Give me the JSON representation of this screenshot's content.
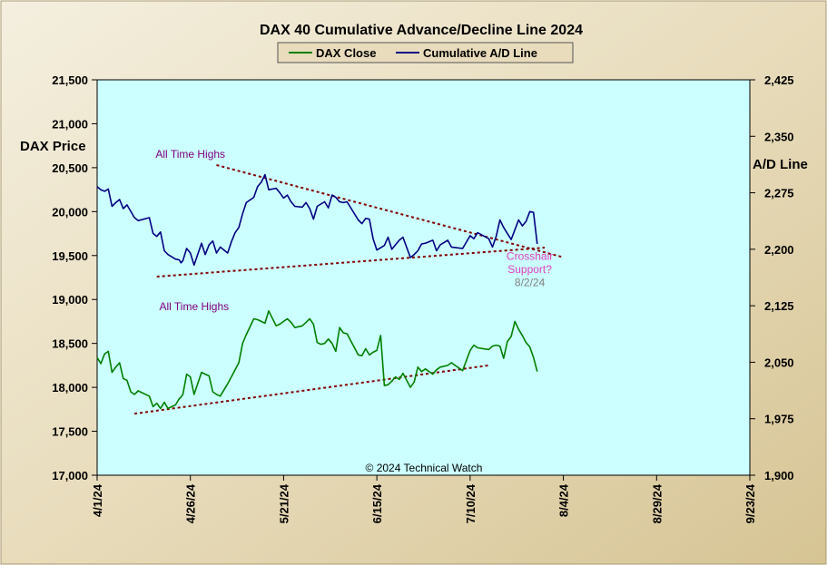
{
  "chart_data": {
    "type": "line",
    "title": "DAX 40 Cumulative Advance/Decline Line 2024",
    "ylabel_left": "DAX Price",
    "ylabel_right": "A/D Line",
    "footer": "© 2024 Technical Watch",
    "x_tick_labels": [
      "4/1/24",
      "4/26/24",
      "5/21/24",
      "6/15/24",
      "7/10/24",
      "8/4/24",
      "8/29/24",
      "9/23/24"
    ],
    "x_range_days": [
      0,
      175
    ],
    "ylim_left": [
      17000,
      21500
    ],
    "ylim_right": [
      1900,
      2425
    ],
    "y_ticks_left": [
      "17,000",
      "17,500",
      "18,000",
      "18,500",
      "19,000",
      "19,500",
      "20,000",
      "20,500",
      "21,000",
      "21,500"
    ],
    "y_ticks_right": [
      "1,900",
      "1,975",
      "2,050",
      "2,125",
      "2,200",
      "2,275",
      "2,350",
      "2,425"
    ],
    "legend": [
      "DAX Close",
      "Cumulative A/D Line"
    ],
    "colors": {
      "dax_close": "#008000",
      "ad_line": "#000080",
      "trendline": "#800000",
      "plot_bg": "#ccffff",
      "frame_bg": "#ece3c9",
      "annotation_purple": "#800080",
      "annotation_pink": "#e040c0",
      "annotation_gray": "#808080"
    },
    "series": [
      {
        "name": "DAX Close",
        "axis": "left",
        "x": [
          0,
          1,
          2,
          3,
          4,
          5,
          6,
          7,
          8,
          9,
          10,
          11,
          14,
          15,
          16,
          17,
          18,
          19,
          21,
          22,
          22.5,
          23,
          24,
          25,
          26,
          28,
          29,
          30,
          31,
          32,
          33,
          35,
          36,
          37,
          38,
          39,
          40,
          42,
          43,
          44,
          45,
          46,
          48,
          49,
          50,
          51,
          52,
          53,
          55,
          56,
          57,
          58,
          59,
          60,
          61,
          62,
          63,
          64,
          65,
          66,
          67,
          70,
          71,
          72,
          73,
          74,
          75,
          76,
          77,
          78,
          79,
          80,
          81,
          82,
          84,
          85,
          86,
          87,
          88,
          90,
          91,
          92,
          94,
          95,
          98,
          100,
          101,
          102,
          105,
          106,
          107,
          108,
          109,
          110,
          111,
          112,
          113,
          114,
          115,
          116,
          117,
          118
        ],
        "values": [
          18340,
          18270,
          18380,
          18410,
          18170,
          18230,
          18280,
          18100,
          18080,
          17950,
          17920,
          17960,
          17900,
          17780,
          17820,
          17760,
          17830,
          17760,
          17800,
          17870,
          17890,
          17920,
          18150,
          18120,
          17920,
          18170,
          18150,
          18130,
          17950,
          17920,
          17900,
          18040,
          18120,
          18200,
          18280,
          18500,
          18600,
          18780,
          18770,
          18750,
          18730,
          18870,
          18700,
          18720,
          18750,
          18780,
          18740,
          18680,
          18700,
          18740,
          18780,
          18720,
          18510,
          18490,
          18500,
          18550,
          18500,
          18410,
          18680,
          18620,
          18610,
          18370,
          18360,
          18440,
          18370,
          18400,
          18420,
          18590,
          18020,
          18030,
          18070,
          18120,
          18090,
          18160,
          18000,
          18060,
          18230,
          18180,
          18210,
          18150,
          18200,
          18230,
          18250,
          18280,
          18190,
          18420,
          18480,
          18450,
          18430,
          18470,
          18480,
          18470,
          18330,
          18520,
          18580,
          18750,
          18660,
          18590,
          18510,
          18460,
          18340,
          18180
        ],
        "_note": "source"
      },
      {
        "name": "Cumulative A/D Line",
        "axis": "right",
        "x": [
          0,
          1,
          2,
          3,
          4,
          5,
          6,
          7,
          8,
          10,
          11,
          14,
          15,
          16,
          17,
          18,
          19,
          21,
          22,
          22.5,
          23,
          24,
          25,
          26,
          28,
          29,
          30,
          31,
          32,
          33,
          35,
          36,
          37,
          38,
          39,
          40,
          42,
          43,
          44,
          45,
          46,
          48,
          49,
          50,
          51,
          52,
          53,
          55,
          56,
          57,
          58,
          59,
          60,
          61,
          62,
          63,
          64,
          65,
          66,
          67,
          70,
          71,
          72,
          73,
          74,
          75,
          76,
          77,
          78,
          79,
          80,
          81,
          82,
          84,
          85,
          86,
          87,
          88,
          90,
          91,
          92,
          94,
          95,
          98,
          100,
          101,
          102,
          105,
          106,
          107,
          108,
          109,
          110,
          111,
          112,
          113,
          114,
          115,
          116,
          117,
          118
        ],
        "values": [
          2283,
          2279,
          2277,
          2280,
          2257,
          2262,
          2266,
          2254,
          2259,
          2242,
          2238,
          2242,
          2221,
          2217,
          2223,
          2198,
          2193,
          2187,
          2186,
          2182,
          2185,
          2201,
          2195,
          2179,
          2208,
          2193,
          2206,
          2211,
          2195,
          2203,
          2195,
          2210,
          2222,
          2229,
          2247,
          2262,
          2269,
          2283,
          2289,
          2299,
          2279,
          2281,
          2275,
          2268,
          2272,
          2263,
          2257,
          2256,
          2262,
          2254,
          2240,
          2257,
          2260,
          2263,
          2255,
          2272,
          2269,
          2263,
          2262,
          2263,
          2239,
          2234,
          2241,
          2240,
          2214,
          2199,
          2202,
          2205,
          2216,
          2200,
          2206,
          2212,
          2216,
          2189,
          2193,
          2198,
          2207,
          2208,
          2212,
          2198,
          2206,
          2212,
          2203,
          2201,
          2218,
          2214,
          2222,
          2214,
          2203,
          2217,
          2239,
          2229,
          2221,
          2213,
          2226,
          2239,
          2231,
          2237,
          2250,
          2249,
          2207
        ],
        "_note": "source"
      }
    ],
    "trendlines": [
      {
        "axis": "left",
        "x": [
          32,
          125
        ],
        "values": [
          20530,
          19480
        ]
      },
      {
        "axis": "left",
        "x": [
          16,
          120
        ],
        "values": [
          19260,
          19590
        ]
      },
      {
        "axis": "left",
        "x": [
          10,
          105
        ],
        "values": [
          17700,
          18250
        ]
      }
    ],
    "annotations": [
      {
        "text": "All Time Highs",
        "x": 25,
        "y": 20610,
        "color": "#800080"
      },
      {
        "text": "All Time Highs",
        "x": 26,
        "y": 18880,
        "color": "#800080"
      },
      {
        "text": "Crosshair",
        "x": 116,
        "y": 19450,
        "color": "#e040c0"
      },
      {
        "text": "Support?",
        "x": 116,
        "y": 19300,
        "color": "#e040c0"
      },
      {
        "text": "8/2/24",
        "x": 116,
        "y": 19150,
        "color": "#808080"
      }
    ]
  }
}
